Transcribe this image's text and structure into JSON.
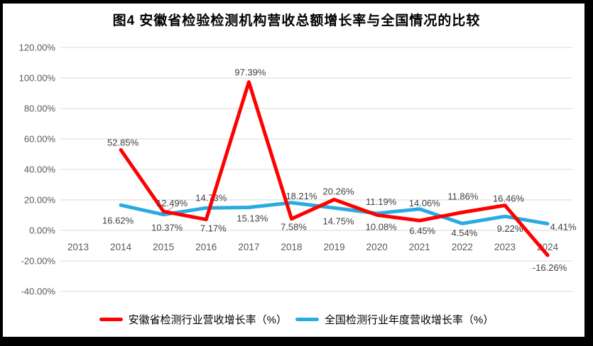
{
  "chart_data": {
    "type": "line",
    "title": "图4 安徽省检验检测机构营收总额增长率与全国情况的比较",
    "categories": [
      "2013",
      "2014",
      "2015",
      "2016",
      "2017",
      "2018",
      "2019",
      "2020",
      "2021",
      "2022",
      "2023",
      "2024"
    ],
    "series": [
      {
        "id": "anhui",
        "name": "安徽省检测行业营收增长率（%）",
        "color": "#FF0000",
        "values": [
          null,
          52.85,
          12.49,
          7.17,
          97.39,
          7.58,
          20.26,
          10.08,
          6.45,
          11.86,
          16.46,
          -16.26
        ],
        "labels": [
          null,
          "52.85%",
          "12.49%",
          "7.17%",
          "97.39%",
          "7.58%",
          "20.26%",
          "10.08%",
          "6.45%",
          "11.86%",
          "16.46%",
          "-16.26%"
        ],
        "label_offsets": [
          null,
          [
            3,
            -6
          ],
          [
            12,
            -7
          ],
          [
            10,
            17
          ],
          [
            2,
            -9
          ],
          [
            3,
            16
          ],
          [
            6,
            -7
          ],
          [
            6,
            21
          ],
          [
            4,
            19
          ],
          [
            1,
            -18
          ],
          [
            5,
            -5
          ],
          [
            3,
            22
          ]
        ]
      },
      {
        "id": "national",
        "name": "全国检测行业年度营收增长率（%）",
        "color": "#29ABE2",
        "values": [
          null,
          16.62,
          10.37,
          14.73,
          15.13,
          18.21,
          14.75,
          11.19,
          14.06,
          4.54,
          9.22,
          4.41
        ],
        "labels": [
          null,
          "16.62%",
          "10.37%",
          "14.73%",
          "15.13%",
          "18.21%",
          "14.75%",
          "11.19%",
          "14.06%",
          "4.54%",
          "9.22%",
          "4.41%"
        ],
        "label_offsets": [
          null,
          [
            -4,
            26
          ],
          [
            5,
            23
          ],
          [
            7,
            -10
          ],
          [
            5,
            20
          ],
          [
            14,
            -5
          ],
          [
            6,
            23
          ],
          [
            6,
            -12
          ],
          [
            7,
            -4
          ],
          [
            3,
            18
          ],
          [
            7,
            22
          ],
          [
            22,
            9
          ]
        ]
      }
    ],
    "y_axis": {
      "min": -40,
      "max": 120,
      "step": 20,
      "tick_labels": [
        "120.00%",
        "100.00%",
        "80.00%",
        "60.00%",
        "40.00%",
        "20.00%",
        "0.00%",
        "-20.00%",
        "-40.00%"
      ]
    },
    "grid": true,
    "legend_position": "bottom",
    "colors": {
      "grid": "#D9D9D9",
      "axis_text": "#595959",
      "data_label": "#404040",
      "leader_line": "#A6A6A6",
      "frame_border": "#000000",
      "background": "#FFFFFF"
    }
  }
}
